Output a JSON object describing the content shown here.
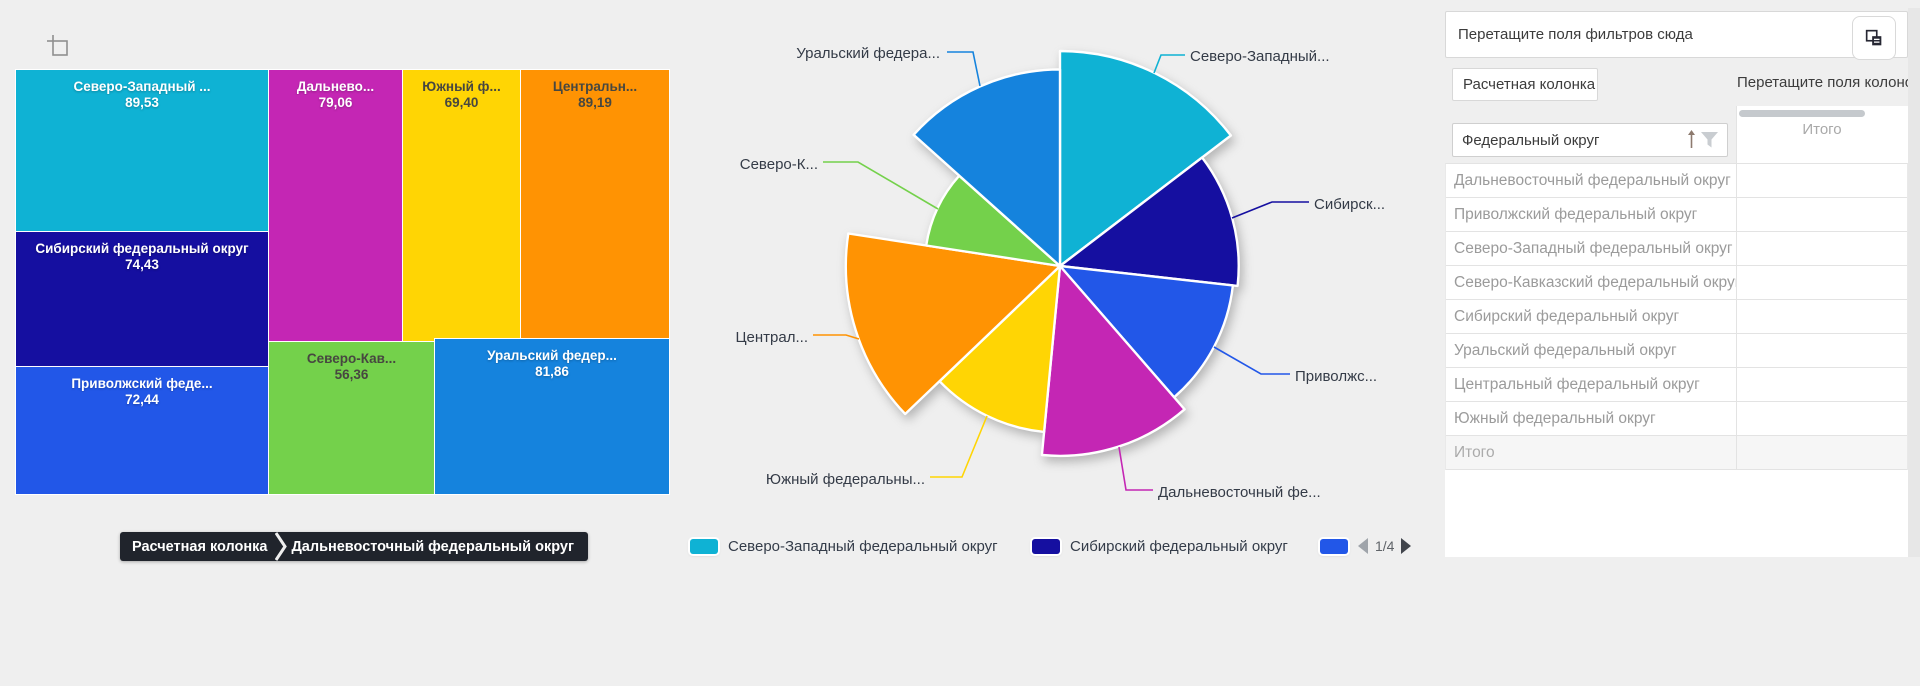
{
  "page": {
    "background": "#efefef"
  },
  "colors": {
    "szap": "#0fb2d4",
    "sib": "#150fa0",
    "priv": "#2257e8",
    "dv": "#c426b4",
    "yuzh": "#ffd504",
    "centr": "#ff9303",
    "skav": "#74d14b",
    "ural": "#1583dd"
  },
  "treemap": {
    "cells": [
      {
        "id": "szap",
        "label": "Северо-Западный ...",
        "value": "89,53"
      },
      {
        "id": "sib",
        "label": "Сибирский федеральный округ",
        "value": "74,43"
      },
      {
        "id": "priv",
        "label": "Приволжский феде...",
        "value": "72,44"
      },
      {
        "id": "dv",
        "label": "Дальнево...",
        "value": "79,06"
      },
      {
        "id": "yuzh",
        "label": "Южный ф...",
        "value": "69,40"
      },
      {
        "id": "centr",
        "label": "Центральн...",
        "value": "89,19"
      },
      {
        "id": "skav",
        "label": "Северо-Кав...",
        "value": "56,36"
      },
      {
        "id": "ural",
        "label": "Уральский федер...",
        "value": "81,86"
      }
    ],
    "tooltip": {
      "source": "Расчетная колонка",
      "value": "Дальневосточный федеральный округ"
    }
  },
  "pie": {
    "labels": {
      "szap": "Северо-Западный...",
      "sib": "Сибирск...",
      "priv": "Приволжс...",
      "dv": "Дальневосточный фе...",
      "yuzh": "Южный федеральны...",
      "centr": "Централ...",
      "skav": "Северо-К...",
      "ural": "Уральский федера..."
    },
    "legend": {
      "items": [
        {
          "id": "szap",
          "label": "Северо-Западный федеральный округ"
        },
        {
          "id": "sib",
          "label": "Сибирский федеральный округ"
        },
        {
          "id": "priv",
          "label": ""
        }
      ],
      "pager": "1/4"
    }
  },
  "panel": {
    "filters_placeholder": "Перетащите поля фильтров сюда",
    "row_chip": "Расчетная колонка",
    "columns_placeholder": "Перетащите поля колоно",
    "field_name": "Федеральный округ",
    "total_header": "Итого",
    "rows": [
      "Дальневосточный федеральный округ",
      "Приволжский федеральный округ",
      "Северо-Западный федеральный округ",
      "Северо-Кавказский федеральный округ",
      "Сибирский федеральный округ",
      "Уральский федеральный округ",
      "Центральный федеральный округ",
      "Южный федеральный округ"
    ],
    "total_row_label": "Итого"
  },
  "chart_data": [
    {
      "type": "treemap",
      "series": [
        {
          "name": "Северо-Западный федеральный округ",
          "value": 89.53
        },
        {
          "name": "Центральный федеральный округ",
          "value": 89.19
        },
        {
          "name": "Уральский федеральный округ",
          "value": 81.86
        },
        {
          "name": "Дальневосточный федеральный округ",
          "value": 79.06
        },
        {
          "name": "Сибирский федеральный округ",
          "value": 74.43
        },
        {
          "name": "Приволжский федеральный округ",
          "value": 72.44
        },
        {
          "name": "Южный федеральный округ",
          "value": 69.4
        },
        {
          "name": "Северо-Кавказский федеральный округ",
          "value": 56.36
        }
      ],
      "value_format": "comma_decimal"
    },
    {
      "type": "pie",
      "variant": "nightingale_rose",
      "categories": [
        "Северо-Западный федеральный округ",
        "Сибирский федеральный округ",
        "Приволжский федеральный округ",
        "Дальневосточный федеральный округ",
        "Южный федеральный округ",
        "Центральный федеральный округ",
        "Северо-Кавказский федеральный округ",
        "Уральский федеральный округ"
      ],
      "ids": [
        "szap",
        "sib",
        "priv",
        "dv",
        "yuzh",
        "centr",
        "skav",
        "ural"
      ],
      "values": [
        89.53,
        74.43,
        72.44,
        79.06,
        69.4,
        89.19,
        56.36,
        81.86
      ],
      "start_angle_deg": 0,
      "direction": "clockwise",
      "angle_proportional_to_value": true,
      "radius_proportional_to_value": true,
      "legend_position": "bottom",
      "legend_page": "1/4"
    }
  ]
}
